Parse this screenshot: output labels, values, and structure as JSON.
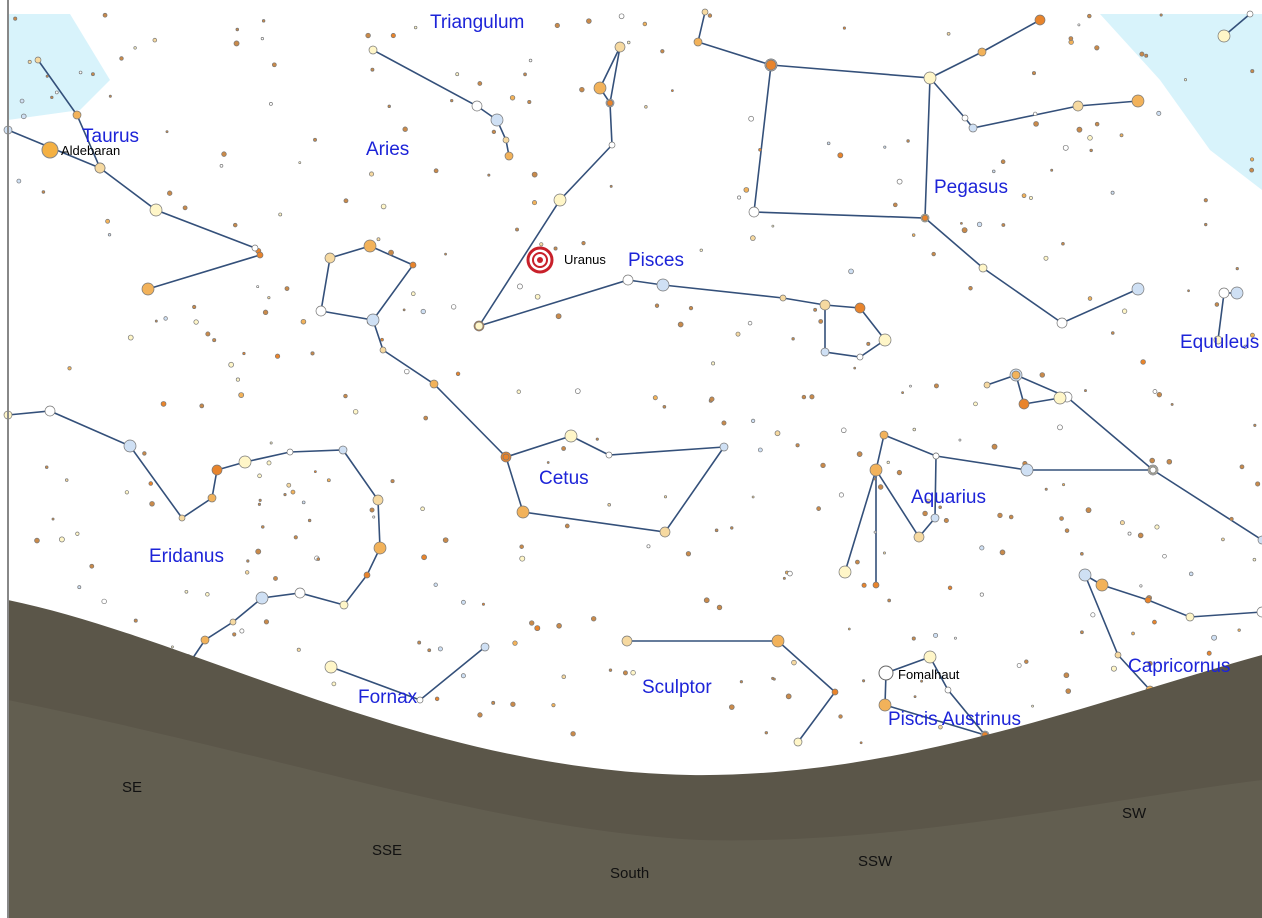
{
  "constellations": [
    "Triangulum",
    "Taurus",
    "Aries",
    "Pisces",
    "Pegasus",
    "Equuleus",
    "Cetus",
    "Eridanus",
    "Aquarius",
    "Fornax",
    "Sculptor",
    "Piscis Austrinus",
    "Capricornus"
  ],
  "stars": [
    "Aldebaran",
    "Fomalhaut"
  ],
  "planets": [
    "Uranus"
  ],
  "directions": [
    "SE",
    "SSE",
    "South",
    "SSW",
    "SW"
  ]
}
